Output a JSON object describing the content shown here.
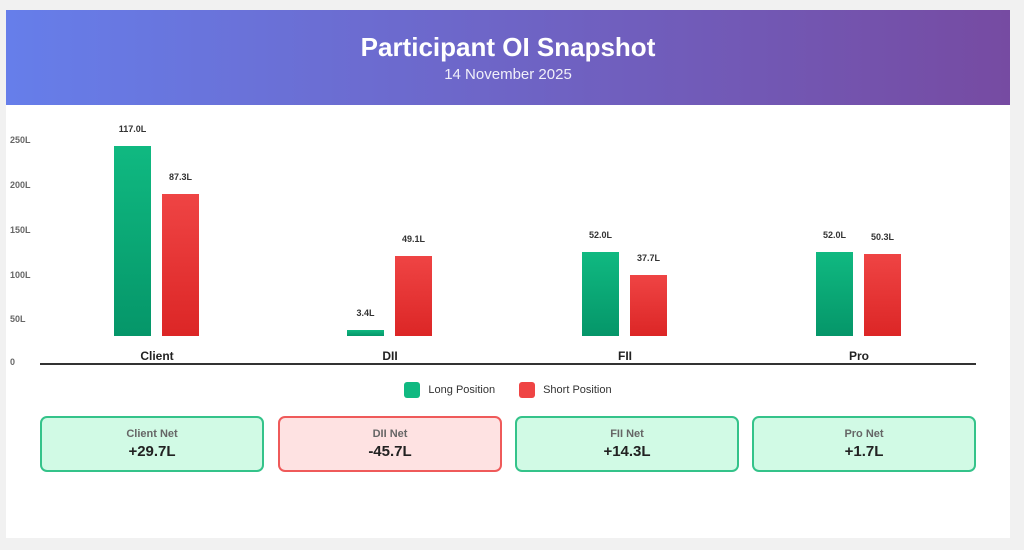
{
  "header": {
    "title": "Participant OI Snapshot",
    "date": "14 November 2025"
  },
  "chart_data": {
    "type": "bar",
    "categories": [
      "Client",
      "DII",
      "FII",
      "Pro"
    ],
    "series": [
      {
        "name": "Long Position",
        "values": [
          117.0,
          3.4,
          52.0,
          52.0
        ],
        "labels": [
          "117.0L",
          "3.4L",
          "52.0L",
          "52.0L"
        ],
        "color": "#10b981"
      },
      {
        "name": "Short Position",
        "values": [
          87.3,
          49.1,
          37.7,
          50.3
        ],
        "labels": [
          "87.3L",
          "49.1L",
          "37.7L",
          "50.3L"
        ],
        "color": "#ef4444"
      }
    ],
    "y_tick_labels": [
      "250L",
      "200L",
      "150L",
      "100L",
      "50L",
      "0"
    ],
    "legend": "bottom-center",
    "grid": false
  },
  "net": [
    {
      "label": "Client Net",
      "value": "+29.7L",
      "sign": "pos"
    },
    {
      "label": "DII Net",
      "value": "-45.7L",
      "sign": "neg"
    },
    {
      "label": "FII Net",
      "value": "+14.3L",
      "sign": "pos"
    },
    {
      "label": "Pro Net",
      "value": "+1.7L",
      "sign": "pos"
    }
  ]
}
